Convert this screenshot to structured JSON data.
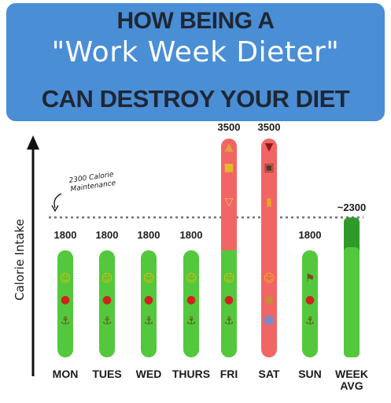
{
  "title": {
    "line1": "HOW BEING A",
    "line2": "\"Work Week Dieter\"",
    "line3_a": "CAN ",
    "line3_b": "DESTROY",
    "line3_c": " YOUR DIET"
  },
  "colors": {
    "banner": "#4a8ed6",
    "green": "#53c83c",
    "green_dark": "#2f9a2a",
    "red": "#f26565"
  },
  "chart_data": {
    "type": "bar",
    "ylabel": "Calorie Intake",
    "categories": [
      "MON",
      "TUES",
      "WED",
      "THURS",
      "FRI",
      "SAT",
      "SUN",
      "WEEK AVG"
    ],
    "values": [
      1800,
      1800,
      1800,
      1800,
      3500,
      3500,
      1800,
      2300
    ],
    "value_labels": [
      "1800",
      "1800",
      "1800",
      "1800",
      "3500",
      "3500",
      "1800",
      "~2300"
    ],
    "baseline_level": 1800,
    "maintenance": {
      "value": 2300,
      "label_line1": "2300 Calorie",
      "label_line2": "Maintenance"
    },
    "emojis": [
      [
        "smile-emoji",
        "apple-emoji",
        "weightlifter-emoji"
      ],
      [
        "smile-emoji",
        "apple-emoji",
        "weightlifter-emoji"
      ],
      [
        "smile-emoji",
        "apple-emoji",
        "weightlifter-emoji"
      ],
      [
        "smile-emoji",
        "apple-emoji",
        "weightlifter-emoji"
      ],
      [
        "smile-emoji",
        "apple-emoji",
        "weightlifter-emoji",
        "pizza-emoji",
        "fries-emoji",
        "cocktail-emoji"
      ],
      [
        "sleepy-emoji",
        "burger-emoji",
        "cold-sweat-emoji",
        "wine-emoji",
        "cinema-emoji",
        "beer-emoji"
      ],
      [
        "runner-emoji",
        "apple-emoji",
        "weightlifter-emoji"
      ],
      []
    ],
    "ylim": [
      0,
      3500
    ]
  }
}
